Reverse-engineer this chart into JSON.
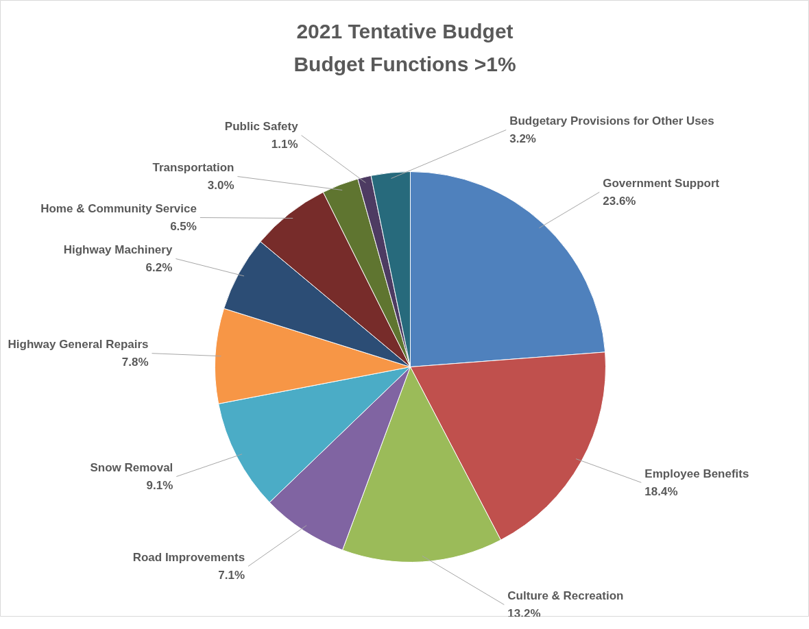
{
  "chart_data": {
    "type": "pie",
    "title": "2021 Tentative Budget\nBudget Functions >1%",
    "categories": [
      "Government Support",
      "Employee Benefits",
      "Culture & Recreation",
      "Road Improvements",
      "Snow Removal",
      "Highway General Repairs",
      "Highway Machinery",
      "Home & Community Service",
      "Transportation",
      "Public Safety",
      "Budgetary Provisions for Other Uses"
    ],
    "values": [
      23.6,
      18.4,
      13.2,
      7.1,
      9.1,
      7.8,
      6.2,
      6.5,
      3.0,
      1.1,
      3.2
    ],
    "value_labels": [
      "23.6%",
      "18.4%",
      "13.2%",
      "7.1%",
      "9.1%",
      "7.8%",
      "6.2%",
      "6.5%",
      "3.0%",
      "1.1%",
      "3.2%"
    ],
    "colors": [
      "#4f81bd",
      "#c0504d",
      "#9bbb59",
      "#8064a2",
      "#4bacc6",
      "#f79646",
      "#2c4d75",
      "#772c2a",
      "#5f7530",
      "#4d3b62",
      "#276a7c"
    ]
  }
}
